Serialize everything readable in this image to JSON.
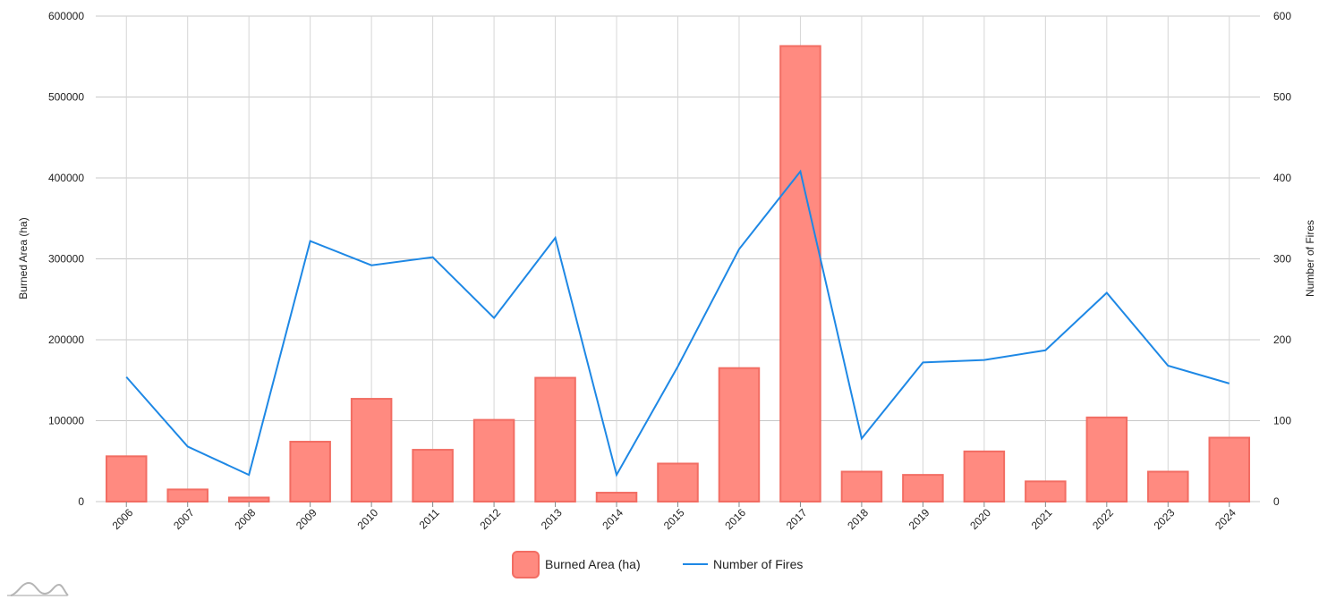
{
  "chart_data": {
    "type": "bar",
    "categories": [
      "2006",
      "2007",
      "2008",
      "2009",
      "2010",
      "2011",
      "2012",
      "2013",
      "2014",
      "2015",
      "2016",
      "2017",
      "2018",
      "2019",
      "2020",
      "2021",
      "2022",
      "2023",
      "2024"
    ],
    "series": [
      {
        "name": "Burned Area (ha)",
        "type": "bar",
        "axis": "left",
        "values": [
          56000,
          15000,
          5000,
          74000,
          127000,
          64000,
          101000,
          153000,
          11000,
          47000,
          165000,
          563000,
          37000,
          33000,
          62000,
          25000,
          104000,
          37000,
          79000
        ]
      },
      {
        "name": "Number of Fires",
        "type": "line",
        "axis": "right",
        "values": [
          154,
          68,
          33,
          322,
          292,
          302,
          227,
          326,
          33,
          167,
          312,
          408,
          78,
          172,
          175,
          187,
          258,
          168,
          146
        ]
      }
    ],
    "ylabel_left": "Burned Area (ha)",
    "ylabel_right": "Number of Fires",
    "ylim_left": [
      0,
      600000
    ],
    "ylim_right": [
      0,
      600
    ],
    "yticks_left": [
      "0",
      "100000",
      "200000",
      "300000",
      "400000",
      "500000",
      "600000"
    ],
    "yticks_right": [
      "0",
      "100",
      "200",
      "300",
      "400",
      "500",
      "600"
    ],
    "grid": true,
    "legend_position": "bottom",
    "colors": {
      "bar_fill": "#ff8a80",
      "bar_stroke": "#f26d63",
      "line": "#1e88e5",
      "grid": "#c8c8c8"
    }
  }
}
